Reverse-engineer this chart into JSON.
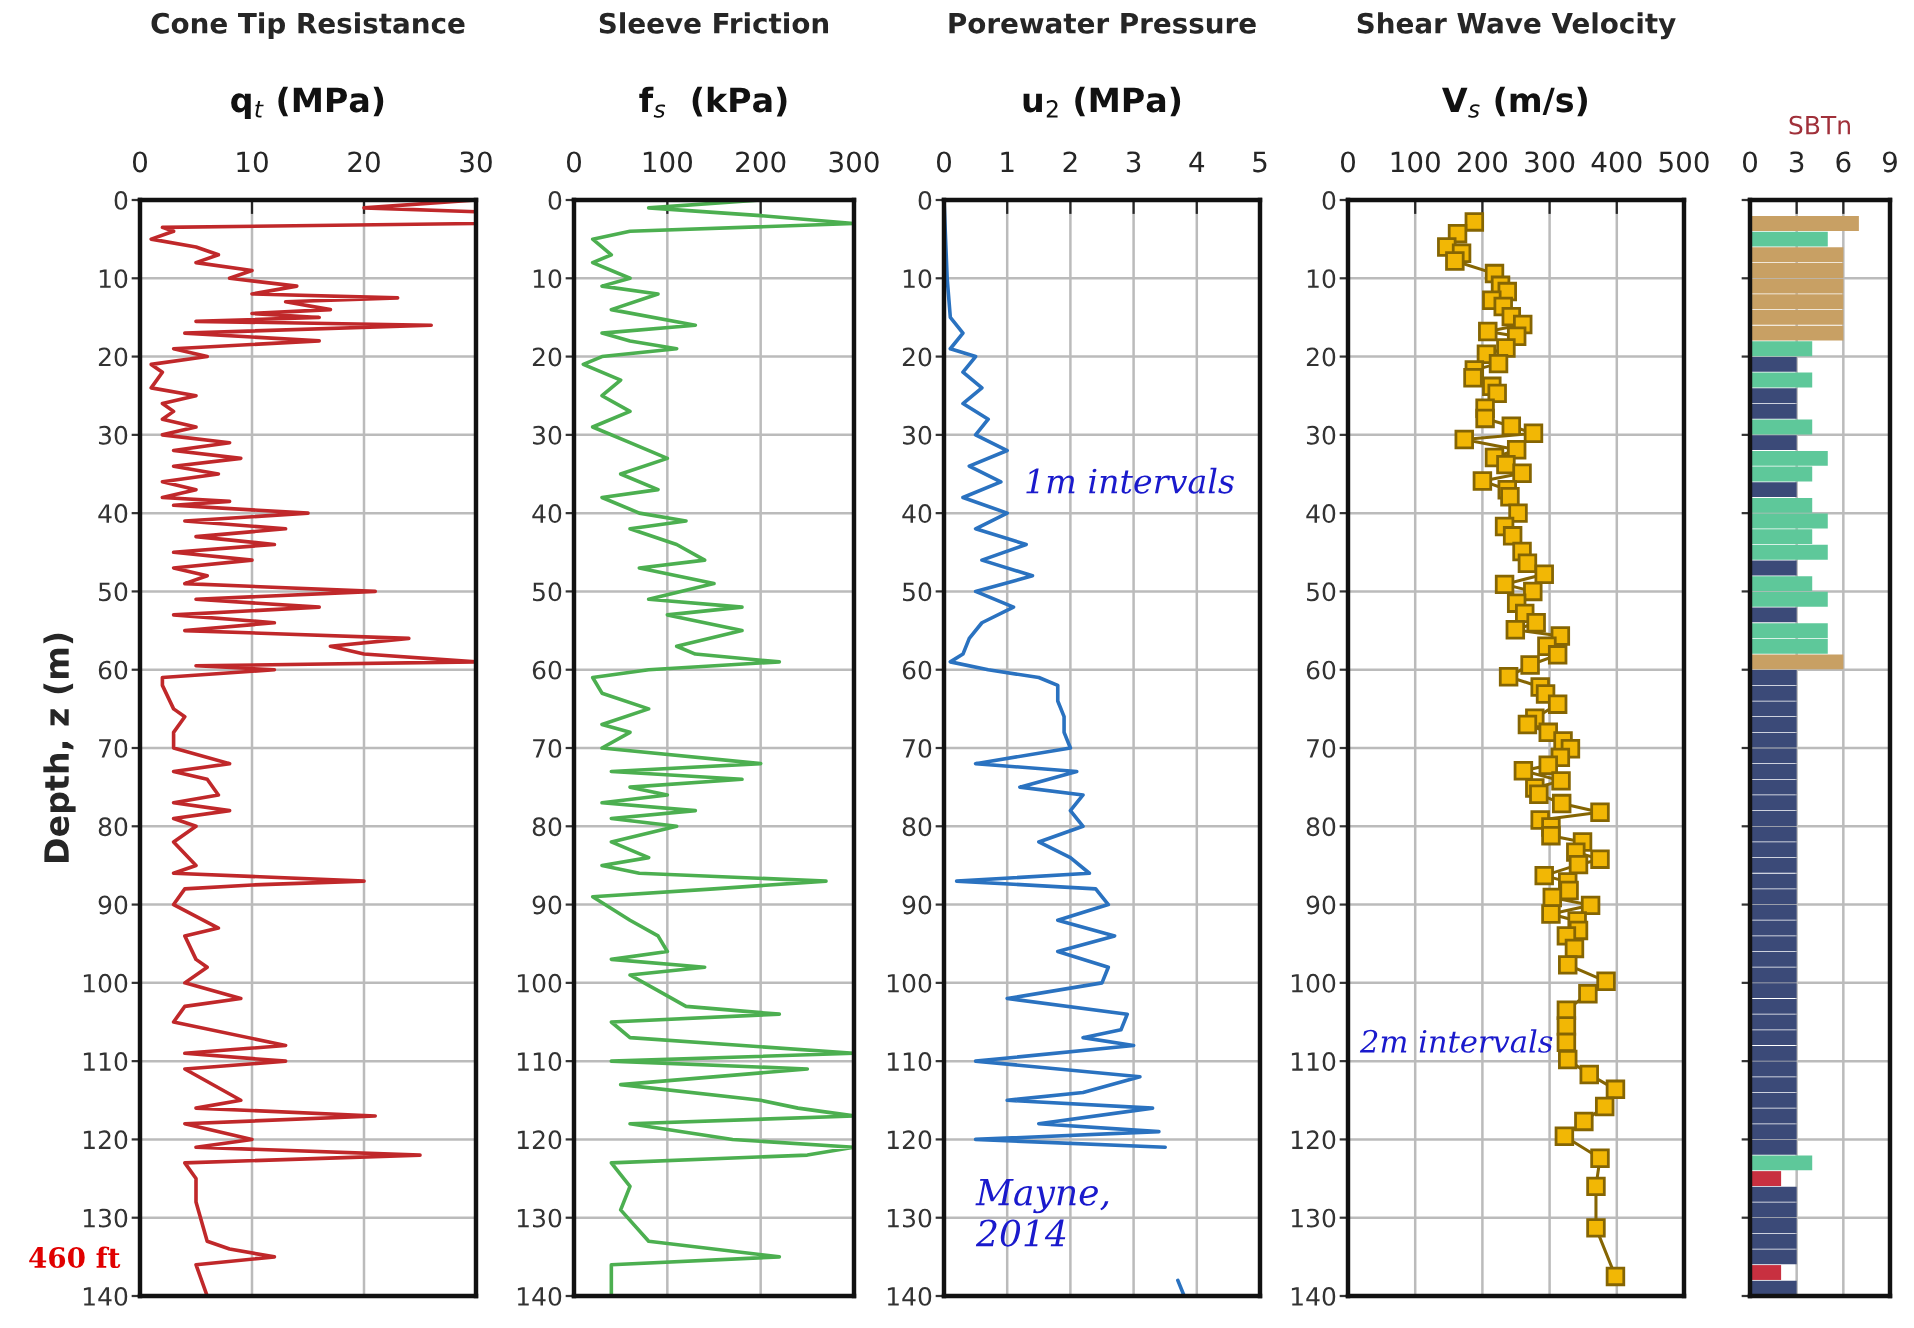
{
  "chart_data": [
    {
      "type": "line",
      "title": "Cone Tip Resistance",
      "xlabel": "q$_{t}$ (MPa)",
      "ylabel": "Depth, z (m)",
      "xlim": [
        0,
        30
      ],
      "xticks": [
        0,
        10,
        20,
        30
      ],
      "ylim": [
        140,
        0
      ],
      "yticks": [
        0,
        10,
        20,
        30,
        40,
        50,
        60,
        70,
        80,
        90,
        100,
        110,
        120,
        130,
        140
      ],
      "grid": true,
      "annotations": [
        "460 ft"
      ],
      "series": [
        {
          "color": "#c0282a",
          "x": [
            30,
            20,
            30,
            30,
            2,
            3,
            1,
            5,
            7,
            5,
            10,
            8,
            14,
            10,
            23,
            13,
            17,
            10,
            16,
            5,
            26,
            4,
            16,
            3,
            6,
            1,
            2,
            1,
            5,
            2,
            3,
            2,
            5,
            2,
            8,
            3,
            9,
            3,
            7,
            2,
            5,
            2,
            8,
            3,
            15,
            4,
            13,
            5,
            12,
            3,
            10,
            3,
            6,
            4,
            21,
            5,
            16,
            3,
            12,
            4,
            24,
            17,
            20,
            30,
            5,
            12,
            2,
            2,
            3,
            4,
            3,
            3,
            8,
            3,
            6,
            7,
            3,
            8,
            3,
            5,
            3,
            5,
            3,
            20,
            10,
            4,
            3,
            7,
            4,
            5,
            6,
            4,
            9,
            4,
            3,
            13,
            4,
            13,
            4,
            9,
            5,
            21,
            4,
            10,
            5,
            25,
            4,
            5,
            5,
            6,
            8,
            12,
            5,
            6
          ],
          "values": [
            0,
            1,
            1.5,
            3,
            3.5,
            4,
            5,
            6,
            7,
            8,
            9,
            10,
            11,
            12,
            12.5,
            13,
            14,
            14.5,
            15,
            15.5,
            16,
            17,
            18,
            19,
            20,
            21,
            22,
            24,
            25,
            26,
            27,
            28,
            29,
            30,
            31,
            32,
            33,
            34,
            35,
            36,
            37,
            38,
            38.5,
            39,
            40,
            41,
            42,
            43,
            44,
            45,
            46,
            47,
            48,
            49,
            50,
            51,
            52,
            53,
            54,
            55,
            56,
            57,
            58,
            59,
            59.5,
            60,
            61,
            62,
            65,
            66,
            68,
            70,
            72,
            73,
            74,
            76,
            77,
            78,
            79,
            80,
            82,
            85,
            86,
            87,
            87.5,
            88,
            90,
            93,
            94,
            97,
            98,
            100,
            102,
            103,
            105,
            108,
            109,
            110,
            111,
            115,
            116,
            117,
            118,
            120,
            121,
            122,
            123,
            125,
            128,
            133,
            134,
            135,
            136,
            140
          ]
        }
      ]
    },
    {
      "type": "line",
      "title": "Sleeve Friction",
      "xlabel": "f$_{s}$  (kPa)",
      "xlim": [
        0,
        300
      ],
      "xticks": [
        0,
        100,
        200,
        300
      ],
      "ylim": [
        140,
        0
      ],
      "yticks": [
        0,
        10,
        20,
        30,
        40,
        50,
        60,
        70,
        80,
        90,
        100,
        110,
        120,
        130,
        140
      ],
      "grid": true,
      "series": [
        {
          "color": "#4caf50",
          "x": [
            200,
            80,
            200,
            300,
            60,
            20,
            40,
            20,
            60,
            30,
            90,
            40,
            130,
            30,
            60,
            110,
            30,
            10,
            50,
            30,
            60,
            20,
            60,
            100,
            50,
            90,
            30,
            70,
            120,
            60,
            110,
            140,
            70,
            150,
            80,
            180,
            100,
            180,
            110,
            130,
            220,
            80,
            20,
            30,
            80,
            30,
            60,
            30,
            200,
            40,
            180,
            60,
            100,
            30,
            130,
            40,
            110,
            40,
            80,
            30,
            70,
            270,
            150,
            20,
            60,
            90,
            100,
            40,
            140,
            60,
            90,
            120,
            220,
            40,
            60,
            300,
            40,
            250,
            50,
            200,
            240,
            300,
            60,
            170,
            300,
            250,
            40,
            60,
            50,
            80,
            220,
            40,
            40
          ],
          "values": [
            0,
            1,
            2,
            3,
            4,
            5,
            7,
            8,
            10,
            11,
            12,
            14,
            16,
            17,
            18,
            19,
            20,
            21,
            23,
            25,
            27,
            29,
            31,
            33,
            35,
            37,
            38,
            40,
            41,
            42,
            44,
            46,
            47,
            49,
            51,
            52,
            53,
            55,
            57,
            58,
            59,
            60,
            61,
            63,
            65,
            67,
            68,
            70,
            72,
            73,
            74,
            75,
            76,
            77,
            78,
            79,
            80,
            82,
            84,
            85,
            86,
            87,
            88,
            89,
            92,
            94,
            96,
            97,
            98,
            99,
            101,
            103,
            104,
            105,
            107,
            109,
            110,
            111,
            113,
            115,
            116,
            117,
            118,
            120,
            121,
            122,
            123,
            126,
            129,
            133,
            135,
            136,
            140
          ]
        }
      ]
    },
    {
      "type": "line",
      "title": "Porewater Pressure",
      "xlabel": "u$_{2}$ (MPa)",
      "xlim": [
        0,
        5
      ],
      "xticks": [
        0,
        1,
        2,
        3,
        4,
        5
      ],
      "ylim": [
        140,
        0
      ],
      "yticks": [
        0,
        10,
        20,
        30,
        40,
        50,
        60,
        70,
        80,
        90,
        100,
        110,
        120,
        130,
        140
      ],
      "grid": true,
      "annotations": [
        "Mayne,\n2014"
      ],
      "series": [
        {
          "color": "#2a72c0",
          "x": [
            0,
            0.05,
            0.1,
            0.3,
            0.1,
            0.5,
            0.3,
            0.6,
            0.3,
            0.7,
            0.5,
            1.0,
            0.4,
            0.9,
            0.3,
            1.0,
            0.5,
            1.3,
            0.6,
            1.4,
            0.5,
            1.1,
            0.6,
            0.4,
            0.3,
            0.1,
            0.7,
            1.5,
            1.8,
            1.8,
            1.9,
            1.9,
            2.0,
            0.5,
            2.1,
            1.2,
            2.2,
            2.0,
            2.2,
            1.5,
            2.0,
            2.3,
            0.2,
            2.4,
            2.6,
            1.8,
            2.7,
            1.8,
            2.6,
            2.5,
            1.0,
            2.9,
            2.8,
            2.2,
            3.0,
            0.5,
            3.1,
            2.2,
            1.0,
            3.3,
            1.5,
            3.4,
            0.5,
            3.5
          ],
          "values": [
            0,
            10,
            15,
            17,
            19,
            20,
            22,
            24,
            26,
            28,
            30,
            32,
            34,
            36,
            38,
            40,
            42,
            44,
            46,
            48,
            50,
            52,
            54,
            56,
            58,
            59,
            60,
            61,
            62,
            64,
            66,
            68,
            70,
            72,
            73,
            75,
            76,
            78,
            80,
            82,
            84,
            86,
            87,
            88,
            90,
            92,
            94,
            96,
            98,
            100,
            102,
            104,
            106,
            107,
            108,
            110,
            112,
            114,
            115,
            116,
            118,
            119,
            120,
            121
          ]
        },
        {
          "color": "#2a72c0",
          "x": [
            3.7,
            3.8
          ],
          "values": [
            138,
            140
          ]
        }
      ]
    },
    {
      "type": "line",
      "title": "Shear Wave Velocity",
      "xlabel": "V$_{s}$ (m/s)",
      "xlim": [
        0,
        500
      ],
      "xticks": [
        0,
        100,
        200,
        300,
        400,
        500
      ],
      "ylim": [
        140,
        0
      ],
      "yticks": [
        0,
        10,
        20,
        30,
        40,
        50,
        60,
        70,
        80,
        90,
        100,
        110,
        120,
        130,
        140
      ],
      "grid": true,
      "marker": "square",
      "annotations": [
        "1m intervals",
        "2m intervals"
      ],
      "series": [
        {
          "color": "#f2b705",
          "x": [
            188,
            163,
            147,
            169,
            159,
            218,
            227,
            237,
            214,
            231,
            243,
            260,
            208,
            251,
            235,
            206,
            224,
            188,
            186,
            214,
            222,
            204,
            204,
            243,
            276,
            173,
            251,
            218,
            235,
            259,
            200,
            237,
            241,
            253,
            233,
            245,
            259,
            267,
            292,
            233,
            275,
            251,
            263,
            280,
            249,
            316,
            296,
            312,
            271,
            239,
            286,
            294,
            312,
            278,
            267,
            298,
            320,
            331,
            316,
            298,
            261,
            317,
            278,
            284,
            318,
            375,
            286,
            302,
            302,
            349,
            339,
            375,
            343,
            292,
            327,
            329,
            304,
            361,
            302,
            341,
            343,
            325,
            337,
            327,
            384,
            357,
            325,
            325,
            325,
            327,
            359,
            398,
            382,
            351,
            322,
            375,
            369,
            369,
            398
          ],
          "values": [
            2.8,
            4.3,
            6,
            6.8,
            7.8,
            9.4,
            10.9,
            11.7,
            12.8,
            13.6,
            14.9,
            15.9,
            16.8,
            17.4,
            18.9,
            19.7,
            20.9,
            21.7,
            22.7,
            23.8,
            24.7,
            26.6,
            27.9,
            28.9,
            29.8,
            30.6,
            31.9,
            32.9,
            33.8,
            34.9,
            35.9,
            37,
            37.9,
            40,
            41.7,
            42.9,
            44.9,
            46.4,
            47.8,
            49.1,
            50,
            51.5,
            52.8,
            54,
            54.9,
            55.7,
            57,
            58.1,
            59.4,
            60.9,
            62.2,
            63.1,
            64.4,
            66.2,
            67,
            68,
            69.1,
            70.1,
            71.2,
            72.2,
            72.9,
            74.2,
            75.1,
            75.9,
            77.1,
            78.2,
            79.2,
            80.1,
            81.2,
            82,
            83.3,
            84.2,
            84.9,
            86.3,
            87.1,
            88.2,
            89.1,
            90.1,
            91.2,
            92.1,
            93.3,
            94,
            95.6,
            97.7,
            99.8,
            101.4,
            103.5,
            105.5,
            107.6,
            109.8,
            111.7,
            113.6,
            115.8,
            117.7,
            119.6,
            122.4,
            126,
            131.3,
            137.5
          ]
        }
      ]
    },
    {
      "type": "bar",
      "orientation": "horizontal",
      "xlabel": "SBTn",
      "xlim": [
        0,
        9
      ],
      "xticks": [
        0,
        3,
        6,
        9
      ],
      "ylim": [
        140,
        0
      ],
      "yticks": [
        0,
        10,
        20,
        30,
        40,
        50,
        60,
        70,
        80,
        90,
        100,
        110,
        120,
        130,
        140
      ],
      "tick_labels": "x",
      "grid": true,
      "x": [
        3,
        5,
        7,
        9,
        11,
        13,
        15,
        17,
        19,
        21,
        23,
        25,
        27,
        29,
        31,
        33,
        35,
        37,
        39,
        41,
        43,
        45,
        47,
        49,
        51,
        53,
        55,
        57,
        59,
        61,
        63,
        65,
        67,
        69,
        71,
        73,
        75,
        77,
        79,
        81,
        83,
        85,
        87,
        89,
        91,
        93,
        95,
        97,
        99,
        101,
        103,
        105,
        107,
        109,
        111,
        113,
        115,
        117,
        119,
        121,
        123,
        125,
        127,
        129,
        131,
        133,
        135,
        137,
        139
      ],
      "values": [
        7,
        5,
        6,
        6,
        6,
        6,
        6,
        6,
        4,
        3,
        4,
        3,
        3,
        4,
        3,
        5,
        4,
        3,
        4,
        5,
        4,
        5,
        3,
        4,
        5,
        3,
        5,
        5,
        6,
        3,
        3,
        3,
        3,
        3,
        3,
        3,
        3,
        3,
        3,
        3,
        3,
        3,
        3,
        3,
        3,
        3,
        3,
        3,
        3,
        3,
        3,
        3,
        3,
        3,
        3,
        3,
        3,
        3,
        3,
        3,
        4,
        2,
        3,
        3,
        3,
        3,
        3,
        2,
        3
      ],
      "colors": [
        "#c8a064",
        "#5ec89a",
        "#c8a064",
        "#c8a064",
        "#c8a064",
        "#c8a064",
        "#c8a064",
        "#c8a064",
        "#5ec89a",
        "#3b4a78",
        "#5ec89a",
        "#3b4a78",
        "#3b4a78",
        "#5ec89a",
        "#3b4a78",
        "#5ec89a",
        "#5ec89a",
        "#3b4a78",
        "#5ec89a",
        "#5ec89a",
        "#5ec89a",
        "#5ec89a",
        "#3b4a78",
        "#5ec89a",
        "#5ec89a",
        "#3b4a78",
        "#5ec89a",
        "#5ec89a",
        "#c8a064",
        "#3b4a78",
        "#3b4a78",
        "#3b4a78",
        "#3b4a78",
        "#3b4a78",
        "#3b4a78",
        "#3b4a78",
        "#3b4a78",
        "#3b4a78",
        "#3b4a78",
        "#3b4a78",
        "#3b4a78",
        "#3b4a78",
        "#3b4a78",
        "#3b4a78",
        "#3b4a78",
        "#3b4a78",
        "#3b4a78",
        "#3b4a78",
        "#3b4a78",
        "#3b4a78",
        "#3b4a78",
        "#3b4a78",
        "#3b4a78",
        "#3b4a78",
        "#3b4a78",
        "#3b4a78",
        "#3b4a78",
        "#3b4a78",
        "#3b4a78",
        "#3b4a78",
        "#5ec89a",
        "#c83040",
        "#3b4a78",
        "#3b4a78",
        "#3b4a78",
        "#3b4a78",
        "#3b4a78",
        "#c83040",
        "#3b4a78"
      ]
    }
  ]
}
